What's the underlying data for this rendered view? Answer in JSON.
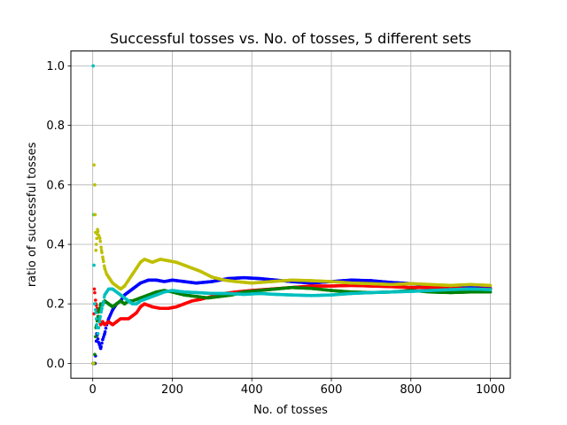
{
  "chart_data": {
    "type": "scatter",
    "title": "Successful tosses vs. No. of tosses, 5 different sets",
    "xlabel": "No. of tosses",
    "ylabel": "ratio of successful tosses",
    "xlim": [
      -55,
      1050
    ],
    "ylim": [
      -0.05,
      1.05
    ],
    "xticks": [
      0,
      200,
      400,
      600,
      800,
      1000
    ],
    "yticks": [
      0.0,
      0.2,
      0.4,
      0.6,
      0.8,
      1.0
    ],
    "xtick_labels": [
      "0",
      "200",
      "400",
      "600",
      "800",
      "1000"
    ],
    "ytick_labels": [
      "0.0",
      "0.2",
      "0.4",
      "0.6",
      "0.8",
      "1.0"
    ],
    "grid": true,
    "legend": "none",
    "series": [
      {
        "color": "#0000ff",
        "points": [
          [
            1,
            0
          ],
          [
            3,
            0
          ],
          [
            6,
            0
          ],
          [
            10,
            0.1
          ],
          [
            15,
            0.07
          ],
          [
            20,
            0.05
          ],
          [
            25,
            0.08
          ],
          [
            30,
            0.1
          ],
          [
            35,
            0.13
          ],
          [
            40,
            0.15
          ],
          [
            50,
            0.18
          ],
          [
            60,
            0.2
          ],
          [
            70,
            0.21
          ],
          [
            80,
            0.23
          ],
          [
            90,
            0.24
          ],
          [
            100,
            0.25
          ],
          [
            120,
            0.27
          ],
          [
            140,
            0.28
          ],
          [
            160,
            0.28
          ],
          [
            180,
            0.275
          ],
          [
            200,
            0.28
          ],
          [
            230,
            0.275
          ],
          [
            260,
            0.27
          ],
          [
            300,
            0.275
          ],
          [
            340,
            0.285
          ],
          [
            380,
            0.288
          ],
          [
            420,
            0.285
          ],
          [
            460,
            0.28
          ],
          [
            500,
            0.275
          ],
          [
            550,
            0.27
          ],
          [
            600,
            0.275
          ],
          [
            650,
            0.28
          ],
          [
            700,
            0.278
          ],
          [
            750,
            0.272
          ],
          [
            800,
            0.268
          ],
          [
            850,
            0.262
          ],
          [
            900,
            0.258
          ],
          [
            950,
            0.255
          ],
          [
            1000,
            0.252
          ]
        ]
      },
      {
        "color": "#ff0000",
        "points": [
          [
            1,
            0
          ],
          [
            4,
            0.25
          ],
          [
            8,
            0.2
          ],
          [
            12,
            0.18
          ],
          [
            16,
            0.15
          ],
          [
            20,
            0.13
          ],
          [
            25,
            0.14
          ],
          [
            30,
            0.13
          ],
          [
            40,
            0.14
          ],
          [
            50,
            0.13
          ],
          [
            60,
            0.14
          ],
          [
            70,
            0.15
          ],
          [
            80,
            0.15
          ],
          [
            90,
            0.15
          ],
          [
            100,
            0.16
          ],
          [
            110,
            0.17
          ],
          [
            120,
            0.19
          ],
          [
            130,
            0.2
          ],
          [
            150,
            0.19
          ],
          [
            170,
            0.185
          ],
          [
            190,
            0.185
          ],
          [
            210,
            0.19
          ],
          [
            230,
            0.2
          ],
          [
            250,
            0.21
          ],
          [
            270,
            0.215
          ],
          [
            300,
            0.225
          ],
          [
            330,
            0.235
          ],
          [
            360,
            0.24
          ],
          [
            400,
            0.245
          ],
          [
            450,
            0.25
          ],
          [
            500,
            0.255
          ],
          [
            550,
            0.26
          ],
          [
            600,
            0.26
          ],
          [
            650,
            0.262
          ],
          [
            700,
            0.26
          ],
          [
            750,
            0.258
          ],
          [
            800,
            0.255
          ],
          [
            850,
            0.255
          ],
          [
            900,
            0.252
          ],
          [
            950,
            0.25
          ],
          [
            1000,
            0.25
          ]
        ]
      },
      {
        "color": "#008000",
        "points": [
          [
            1,
            0
          ],
          [
            4,
            0
          ],
          [
            8,
            0.12
          ],
          [
            12,
            0.15
          ],
          [
            16,
            0.18
          ],
          [
            20,
            0.2
          ],
          [
            25,
            0.2
          ],
          [
            30,
            0.21
          ],
          [
            40,
            0.2
          ],
          [
            50,
            0.19
          ],
          [
            60,
            0.2
          ],
          [
            70,
            0.21
          ],
          [
            80,
            0.2
          ],
          [
            90,
            0.21
          ],
          [
            100,
            0.21
          ],
          [
            120,
            0.22
          ],
          [
            140,
            0.23
          ],
          [
            160,
            0.24
          ],
          [
            180,
            0.245
          ],
          [
            200,
            0.24
          ],
          [
            230,
            0.23
          ],
          [
            260,
            0.225
          ],
          [
            290,
            0.22
          ],
          [
            320,
            0.225
          ],
          [
            350,
            0.23
          ],
          [
            380,
            0.24
          ],
          [
            420,
            0.245
          ],
          [
            460,
            0.25
          ],
          [
            500,
            0.255
          ],
          [
            550,
            0.252
          ],
          [
            600,
            0.245
          ],
          [
            650,
            0.24
          ],
          [
            700,
            0.238
          ],
          [
            750,
            0.24
          ],
          [
            800,
            0.245
          ],
          [
            850,
            0.24
          ],
          [
            900,
            0.238
          ],
          [
            950,
            0.24
          ],
          [
            1000,
            0.24
          ]
        ]
      },
      {
        "color": "#00bfbf",
        "points": [
          [
            1,
            1.0
          ],
          [
            2,
            0.5
          ],
          [
            3,
            0.33
          ],
          [
            5,
            0.2
          ],
          [
            8,
            0.17
          ],
          [
            10,
            0.13
          ],
          [
            13,
            0.1
          ],
          [
            18,
            0.15
          ],
          [
            22,
            0.18
          ],
          [
            26,
            0.2
          ],
          [
            30,
            0.23
          ],
          [
            35,
            0.24
          ],
          [
            40,
            0.25
          ],
          [
            50,
            0.25
          ],
          [
            60,
            0.24
          ],
          [
            70,
            0.23
          ],
          [
            80,
            0.22
          ],
          [
            90,
            0.21
          ],
          [
            100,
            0.2
          ],
          [
            110,
            0.2
          ],
          [
            120,
            0.21
          ],
          [
            140,
            0.22
          ],
          [
            160,
            0.23
          ],
          [
            180,
            0.24
          ],
          [
            200,
            0.245
          ],
          [
            230,
            0.24
          ],
          [
            260,
            0.238
          ],
          [
            300,
            0.235
          ],
          [
            340,
            0.235
          ],
          [
            380,
            0.232
          ],
          [
            420,
            0.235
          ],
          [
            460,
            0.232
          ],
          [
            500,
            0.23
          ],
          [
            550,
            0.228
          ],
          [
            600,
            0.23
          ],
          [
            650,
            0.235
          ],
          [
            700,
            0.238
          ],
          [
            750,
            0.24
          ],
          [
            800,
            0.242
          ],
          [
            850,
            0.245
          ],
          [
            900,
            0.248
          ],
          [
            950,
            0.25
          ],
          [
            1000,
            0.248
          ]
        ]
      },
      {
        "color": "#bfbf00",
        "points": [
          [
            1,
            0
          ],
          [
            2,
            0
          ],
          [
            3,
            0.667
          ],
          [
            4,
            0.5
          ],
          [
            5,
            0.6
          ],
          [
            6,
            0.5
          ],
          [
            8,
            0.38
          ],
          [
            10,
            0.42
          ],
          [
            12,
            0.45
          ],
          [
            15,
            0.43
          ],
          [
            18,
            0.42
          ],
          [
            22,
            0.38
          ],
          [
            26,
            0.35
          ],
          [
            30,
            0.32
          ],
          [
            35,
            0.3
          ],
          [
            40,
            0.29
          ],
          [
            45,
            0.28
          ],
          [
            50,
            0.27
          ],
          [
            60,
            0.26
          ],
          [
            70,
            0.25
          ],
          [
            80,
            0.26
          ],
          [
            90,
            0.28
          ],
          [
            100,
            0.3
          ],
          [
            110,
            0.32
          ],
          [
            120,
            0.34
          ],
          [
            130,
            0.35
          ],
          [
            150,
            0.34
          ],
          [
            170,
            0.35
          ],
          [
            190,
            0.345
          ],
          [
            210,
            0.34
          ],
          [
            230,
            0.33
          ],
          [
            250,
            0.32
          ],
          [
            270,
            0.31
          ],
          [
            300,
            0.29
          ],
          [
            330,
            0.28
          ],
          [
            360,
            0.275
          ],
          [
            400,
            0.27
          ],
          [
            450,
            0.275
          ],
          [
            500,
            0.28
          ],
          [
            550,
            0.278
          ],
          [
            600,
            0.275
          ],
          [
            650,
            0.27
          ],
          [
            700,
            0.268
          ],
          [
            750,
            0.265
          ],
          [
            800,
            0.268
          ],
          [
            850,
            0.265
          ],
          [
            900,
            0.262
          ],
          [
            950,
            0.265
          ],
          [
            1000,
            0.262
          ]
        ]
      }
    ]
  }
}
